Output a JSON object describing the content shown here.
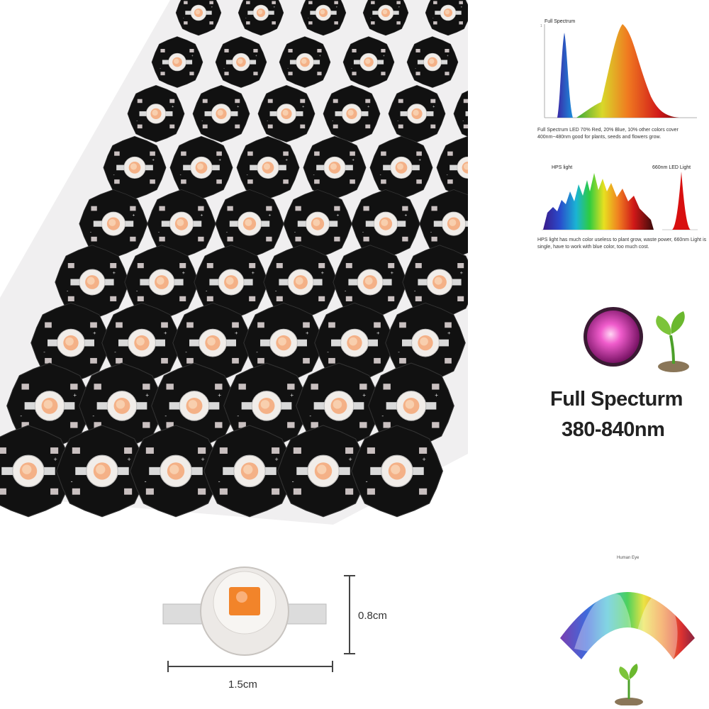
{
  "spectrum_panel": {
    "title": "Full Spectrum",
    "caption": "Full Spectrum LED 70% Red, 20% Blue, 10% other colors cover 400nm~480nm good for plants, seeds and flowers grow."
  },
  "comparison_panel": {
    "hps_label": "HPS light",
    "led_label": "660nm LED Light",
    "caption": "HPS light has much color useless to plant grow, waste power, 660nm Light is single, have to work with blue color, too much cost."
  },
  "badge": {
    "title": "Full Specturm",
    "range": "380-840nm"
  },
  "dimensions": {
    "height": "0.8cm",
    "width": "1.5cm"
  },
  "eye_chart": {
    "label": "Human Eye"
  }
}
